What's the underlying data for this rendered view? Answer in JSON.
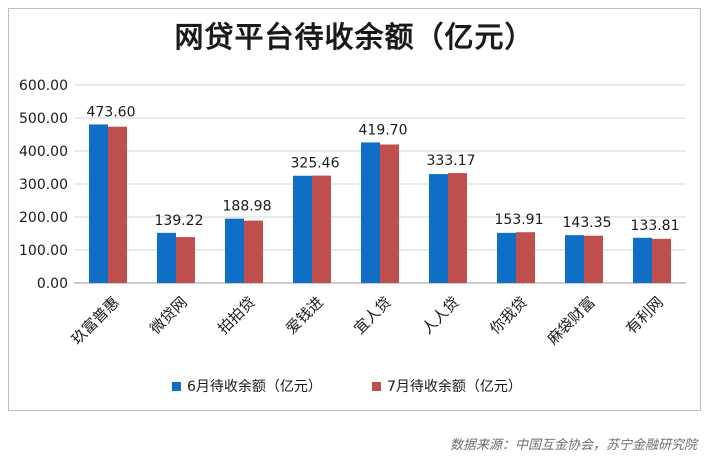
{
  "chart_data": {
    "type": "bar",
    "title": "网贷平台待收余额（亿元）",
    "categories": [
      "玖富普惠",
      "微贷网",
      "拍拍贷",
      "爱钱进",
      "宜人贷",
      "人人贷",
      "你我贷",
      "麻袋财富",
      "有利网"
    ],
    "series": [
      {
        "name": "6月待收余额（亿元）",
        "color": "#0f6fc6",
        "values": [
          480.5,
          152.0,
          195.0,
          325.0,
          426.0,
          330.0,
          152.0,
          145.0,
          137.0
        ]
      },
      {
        "name": "7月待收余额（亿元）",
        "color": "#c0504d",
        "values": [
          473.6,
          139.22,
          188.98,
          325.46,
          419.7,
          333.17,
          153.91,
          143.35,
          133.81
        ]
      }
    ],
    "data_labels": [
      "473.60",
      "139.22",
      "188.98",
      "325.46",
      "419.70",
      "333.17",
      "153.91",
      "143.35",
      "133.81"
    ],
    "yticks": [
      "0.00",
      "100.00",
      "200.00",
      "300.00",
      "400.00",
      "500.00",
      "600.00"
    ],
    "ylim": [
      0,
      600
    ],
    "grid": true,
    "legend_position": "bottom"
  },
  "source_note": "数据来源：中国互金协会，苏宁金融研究院"
}
